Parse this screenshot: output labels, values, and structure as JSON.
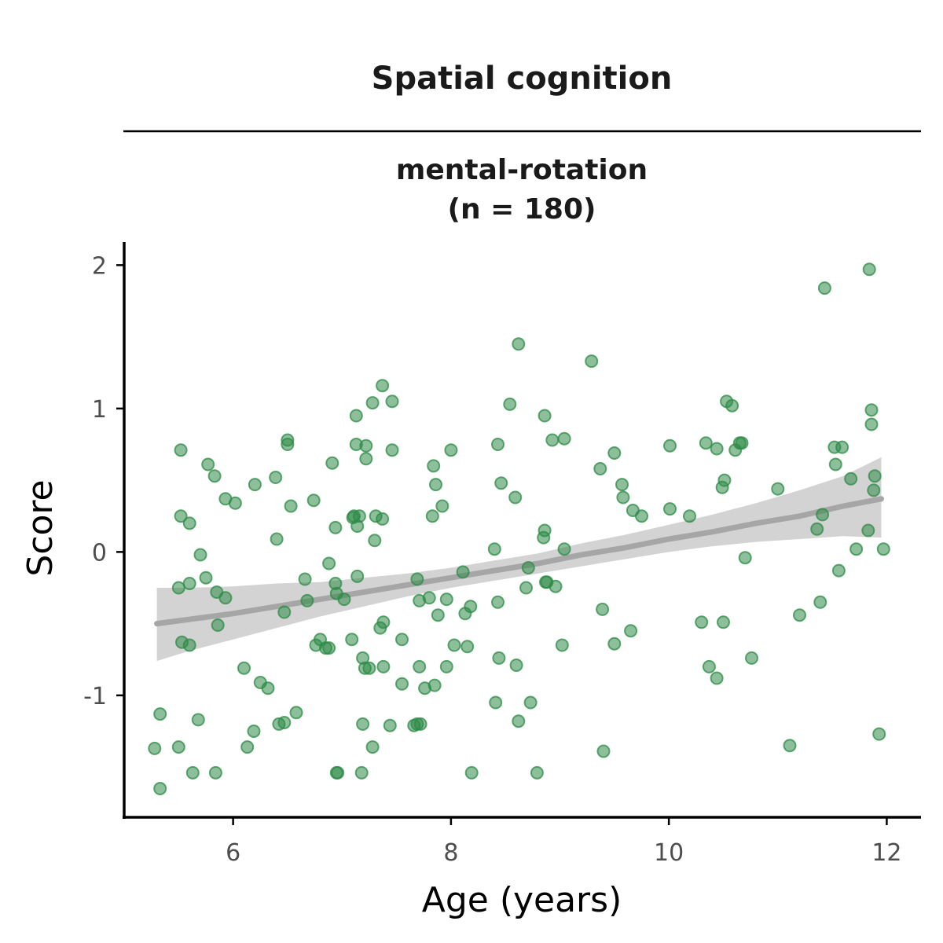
{
  "chart_data": {
    "type": "scatter",
    "title": "Spatial cognition",
    "subtitle_line1": "mental-rotation",
    "subtitle_line2": "(n = 180)",
    "xlabel": "Age (years)",
    "ylabel": "Score",
    "xlim": [
      5.0,
      12.3
    ],
    "ylim": [
      -1.85,
      2.15
    ],
    "xticks": [
      6,
      8,
      10,
      12
    ],
    "yticks": [
      -1,
      0,
      1,
      2
    ],
    "xtick_labels": [
      "6",
      "8",
      "10",
      "12"
    ],
    "ytick_labels": [
      "-1",
      "0",
      "1",
      "2"
    ],
    "grid": false,
    "point_color": "#2e8b47",
    "trend_color": "#a6a6a6",
    "band_color": "#d3d3d3",
    "trend": {
      "x": [
        5.3,
        5.6,
        6.0,
        6.4,
        6.8,
        7.2,
        7.6,
        8.0,
        8.4,
        8.8,
        9.2,
        9.6,
        10.0,
        10.4,
        10.8,
        11.2,
        11.6,
        11.95
      ],
      "y": [
        -0.5,
        -0.47,
        -0.43,
        -0.38,
        -0.33,
        -0.28,
        -0.23,
        -0.18,
        -0.13,
        -0.08,
        -0.02,
        0.03,
        0.09,
        0.14,
        0.2,
        0.25,
        0.32,
        0.37
      ],
      "lower": [
        -0.76,
        -0.69,
        -0.61,
        -0.53,
        -0.45,
        -0.38,
        -0.31,
        -0.25,
        -0.2,
        -0.15,
        -0.1,
        -0.05,
        0.0,
        0.04,
        0.07,
        0.09,
        0.11,
        0.1
      ],
      "upper": [
        -0.25,
        -0.25,
        -0.24,
        -0.22,
        -0.21,
        -0.18,
        -0.15,
        -0.11,
        -0.06,
        -0.01,
        0.06,
        0.12,
        0.19,
        0.26,
        0.34,
        0.43,
        0.53,
        0.66
      ]
    },
    "points": [
      [
        5.28,
        -1.37
      ],
      [
        5.33,
        -1.13
      ],
      [
        5.33,
        -1.65
      ],
      [
        5.5,
        -1.36
      ],
      [
        5.52,
        0.71
      ],
      [
        5.52,
        0.25
      ],
      [
        5.5,
        -0.25
      ],
      [
        5.53,
        -0.63
      ],
      [
        5.6,
        -0.65
      ],
      [
        5.6,
        0.2
      ],
      [
        5.6,
        -0.22
      ],
      [
        5.63,
        -1.54
      ],
      [
        5.68,
        -1.17
      ],
      [
        5.7,
        -0.02
      ],
      [
        5.75,
        -0.18
      ],
      [
        5.77,
        0.61
      ],
      [
        5.83,
        0.53
      ],
      [
        5.84,
        -1.54
      ],
      [
        5.85,
        -0.28
      ],
      [
        5.86,
        -0.51
      ],
      [
        5.93,
        -0.32
      ],
      [
        5.93,
        0.37
      ],
      [
        6.02,
        0.34
      ],
      [
        6.1,
        -0.81
      ],
      [
        6.13,
        -1.36
      ],
      [
        6.19,
        -1.25
      ],
      [
        6.2,
        0.47
      ],
      [
        6.25,
        -0.91
      ],
      [
        6.32,
        -0.95
      ],
      [
        6.39,
        0.52
      ],
      [
        6.4,
        0.09
      ],
      [
        6.42,
        -1.2
      ],
      [
        6.47,
        -0.42
      ],
      [
        6.47,
        -1.19
      ],
      [
        6.5,
        0.78
      ],
      [
        6.5,
        0.75
      ],
      [
        6.53,
        0.32
      ],
      [
        6.58,
        -1.12
      ],
      [
        6.66,
        -0.19
      ],
      [
        6.68,
        -0.34
      ],
      [
        6.74,
        0.36
      ],
      [
        6.76,
        -0.65
      ],
      [
        6.8,
        -0.61
      ],
      [
        6.85,
        -0.67
      ],
      [
        6.88,
        -0.67
      ],
      [
        6.88,
        -0.08
      ],
      [
        6.91,
        0.62
      ],
      [
        6.94,
        0.17
      ],
      [
        6.94,
        -0.22
      ],
      [
        6.95,
        -0.29
      ],
      [
        6.95,
        -1.54
      ],
      [
        6.96,
        -1.54
      ],
      [
        7.02,
        -0.33
      ],
      [
        7.09,
        -0.61
      ],
      [
        7.1,
        0.24
      ],
      [
        7.11,
        0.25
      ],
      [
        7.13,
        0.95
      ],
      [
        7.13,
        0.75
      ],
      [
        7.14,
        -0.17
      ],
      [
        7.14,
        0.18
      ],
      [
        7.16,
        0.25
      ],
      [
        7.18,
        -1.54
      ],
      [
        7.19,
        -1.2
      ],
      [
        7.19,
        -0.74
      ],
      [
        7.21,
        -0.81
      ],
      [
        7.22,
        0.65
      ],
      [
        7.22,
        0.74
      ],
      [
        7.25,
        -0.81
      ],
      [
        7.28,
        1.04
      ],
      [
        7.3,
        0.08
      ],
      [
        7.31,
        0.25
      ],
      [
        7.28,
        -1.36
      ],
      [
        7.35,
        -0.53
      ],
      [
        7.37,
        1.16
      ],
      [
        7.37,
        0.23
      ],
      [
        7.38,
        -0.8
      ],
      [
        7.38,
        -0.49
      ],
      [
        7.44,
        -1.21
      ],
      [
        7.46,
        0.71
      ],
      [
        7.46,
        1.05
      ],
      [
        7.55,
        -0.61
      ],
      [
        7.55,
        -0.92
      ],
      [
        7.66,
        -1.21
      ],
      [
        7.69,
        -0.19
      ],
      [
        7.69,
        -1.2
      ],
      [
        7.71,
        -0.8
      ],
      [
        7.71,
        -0.34
      ],
      [
        7.72,
        -1.2
      ],
      [
        7.76,
        -0.95
      ],
      [
        7.8,
        -0.32
      ],
      [
        7.83,
        0.25
      ],
      [
        7.84,
        0.6
      ],
      [
        7.85,
        -0.93
      ],
      [
        7.86,
        0.47
      ],
      [
        7.88,
        -0.44
      ],
      [
        7.92,
        0.32
      ],
      [
        7.96,
        -0.33
      ],
      [
        7.96,
        -0.8
      ],
      [
        8.0,
        0.71
      ],
      [
        8.03,
        -0.65
      ],
      [
        8.11,
        -0.14
      ],
      [
        8.13,
        -0.43
      ],
      [
        8.15,
        -0.66
      ],
      [
        8.18,
        -0.38
      ],
      [
        8.19,
        -1.54
      ],
      [
        8.4,
        0.02
      ],
      [
        8.41,
        -1.05
      ],
      [
        8.43,
        -0.35
      ],
      [
        8.43,
        0.75
      ],
      [
        8.44,
        -0.74
      ],
      [
        8.46,
        0.48
      ],
      [
        8.54,
        1.03
      ],
      [
        8.59,
        0.38
      ],
      [
        8.6,
        -0.79
      ],
      [
        8.62,
        -1.18
      ],
      [
        8.62,
        1.45
      ],
      [
        8.69,
        -0.25
      ],
      [
        8.71,
        -0.11
      ],
      [
        8.73,
        -1.05
      ],
      [
        8.79,
        -1.54
      ],
      [
        8.85,
        0.1
      ],
      [
        8.86,
        0.15
      ],
      [
        8.86,
        0.95
      ],
      [
        8.87,
        -0.21
      ],
      [
        8.88,
        -0.21
      ],
      [
        8.93,
        0.78
      ],
      [
        8.96,
        -0.24
      ],
      [
        9.02,
        -0.65
      ],
      [
        9.04,
        0.79
      ],
      [
        9.04,
        0.02
      ],
      [
        9.29,
        1.33
      ],
      [
        9.37,
        0.58
      ],
      [
        9.39,
        -0.4
      ],
      [
        9.4,
        -1.39
      ],
      [
        9.5,
        0.69
      ],
      [
        9.5,
        -0.64
      ],
      [
        9.57,
        0.47
      ],
      [
        9.58,
        0.38
      ],
      [
        9.65,
        -0.55
      ],
      [
        9.67,
        0.29
      ],
      [
        9.75,
        0.25
      ],
      [
        10.01,
        0.3
      ],
      [
        10.01,
        0.74
      ],
      [
        10.19,
        0.25
      ],
      [
        10.3,
        -0.49
      ],
      [
        10.34,
        0.76
      ],
      [
        10.37,
        -0.8
      ],
      [
        10.44,
        -0.88
      ],
      [
        10.44,
        0.72
      ],
      [
        10.49,
        0.45
      ],
      [
        10.51,
        0.5
      ],
      [
        10.5,
        -0.49
      ],
      [
        10.53,
        1.05
      ],
      [
        10.58,
        1.02
      ],
      [
        10.61,
        0.71
      ],
      [
        10.65,
        0.76
      ],
      [
        10.67,
        0.76
      ],
      [
        10.7,
        -0.04
      ],
      [
        10.76,
        -0.74
      ],
      [
        11.0,
        0.44
      ],
      [
        11.11,
        -1.35
      ],
      [
        11.2,
        -0.44
      ],
      [
        11.36,
        0.16
      ],
      [
        11.39,
        -0.35
      ],
      [
        11.41,
        0.26
      ],
      [
        11.43,
        1.84
      ],
      [
        11.52,
        0.73
      ],
      [
        11.53,
        0.61
      ],
      [
        11.56,
        -0.13
      ],
      [
        11.59,
        0.73
      ],
      [
        11.67,
        0.51
      ],
      [
        11.72,
        0.02
      ],
      [
        11.83,
        0.15
      ],
      [
        11.84,
        1.97
      ],
      [
        11.86,
        0.89
      ],
      [
        11.86,
        0.99
      ],
      [
        11.88,
        0.43
      ],
      [
        11.89,
        0.53
      ],
      [
        11.93,
        -1.27
      ],
      [
        11.97,
        0.02
      ]
    ]
  }
}
